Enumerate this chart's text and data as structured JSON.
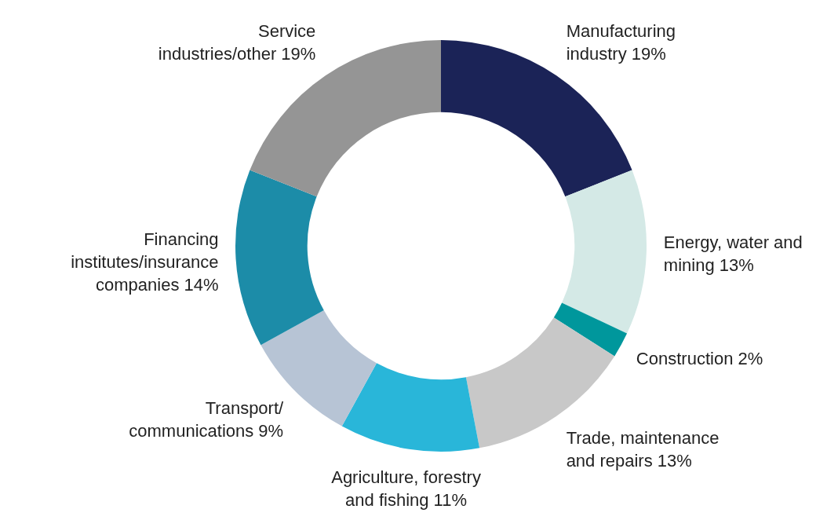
{
  "chart_data": {
    "type": "donut",
    "categories": [
      "Manufacturing industry",
      "Energy, water and mining",
      "Construction",
      "Trade, maintenance and repairs",
      "Agriculture, forestry and fishing",
      "Transport/ communications",
      "Financing institutes/insurance companies",
      "Service industries/other"
    ],
    "values": [
      19,
      13,
      2,
      13,
      11,
      9,
      14,
      19
    ],
    "value_labels": [
      "19%",
      "13%",
      "2%",
      "13%",
      "11%",
      "9%",
      "14%",
      "19%"
    ],
    "colors": [
      "#1b2357",
      "#d4e9e6",
      "#00979c",
      "#c8c8c8",
      "#29b6d9",
      "#b7c4d5",
      "#1c8ca8",
      "#959595"
    ],
    "legend": false
  }
}
